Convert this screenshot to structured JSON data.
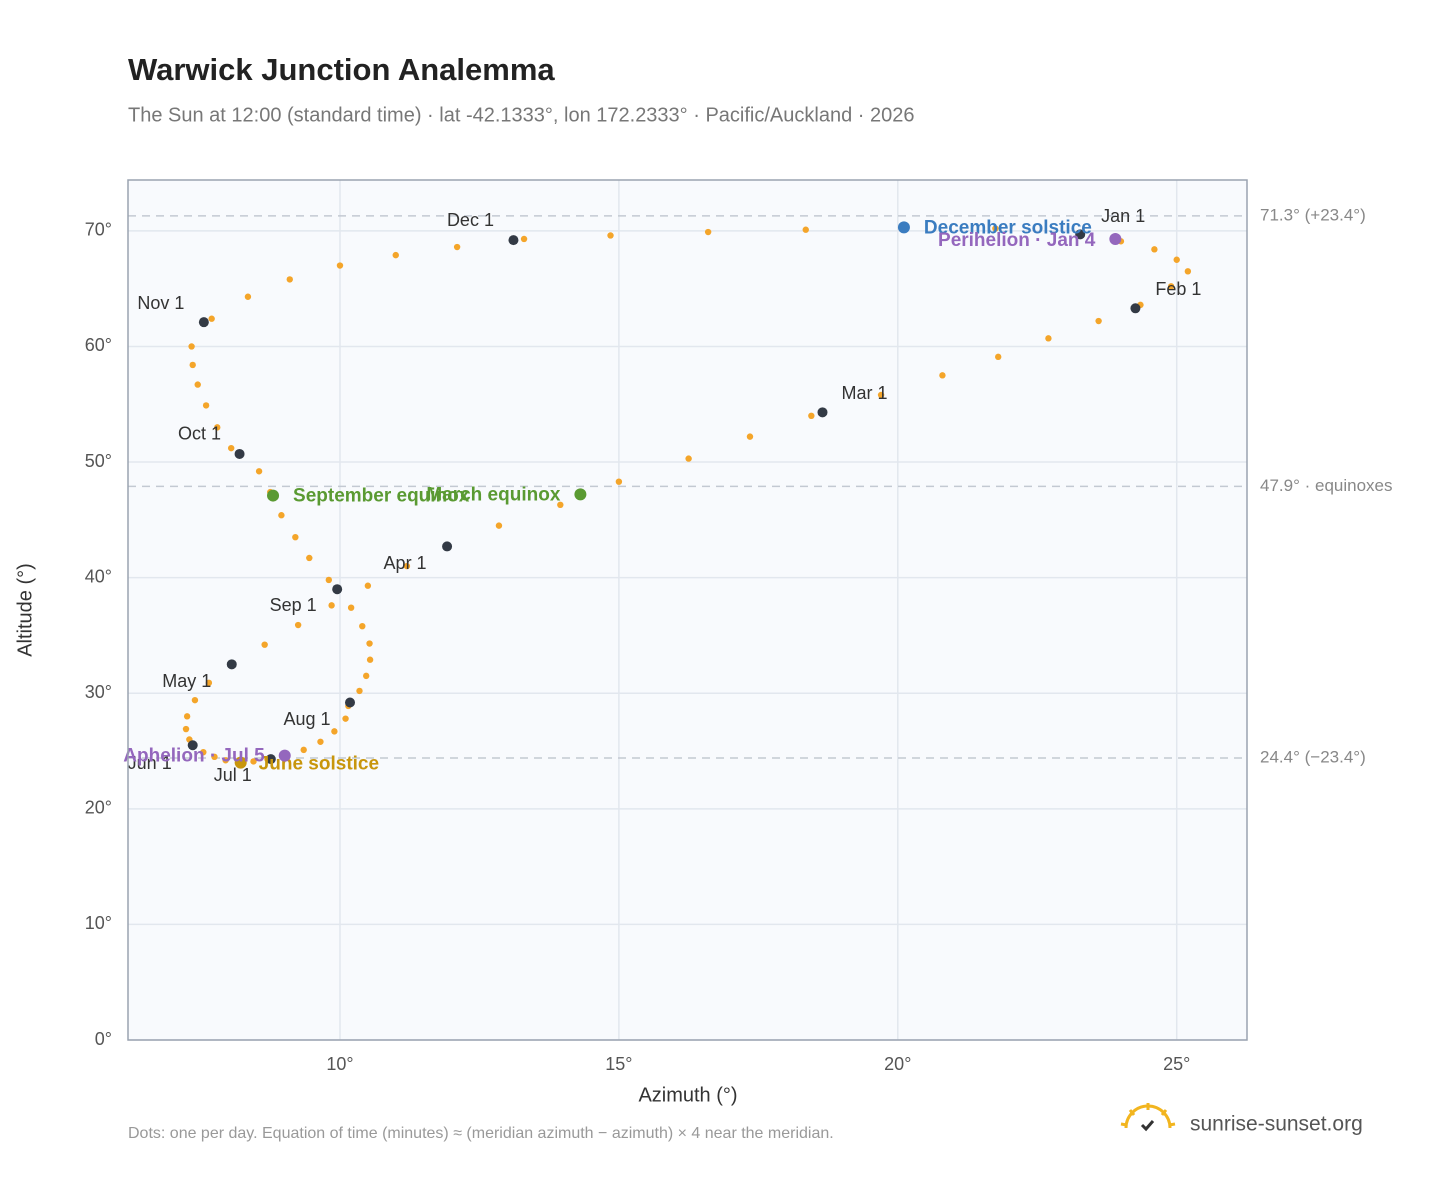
{
  "chart_data": {
    "type": "scatter",
    "title": "Warwick Junction Analemma",
    "subtitle": "The Sun at 12:00 (standard time) · lat -42.1333°, lon 172.2333° · Pacific/Auckland · 2026",
    "x_label": "Azimuth (°)",
    "y_label": "Altitude (°)",
    "xlim": [
      6.2,
      26.26
    ],
    "ylim": [
      0,
      74.4
    ],
    "xticks": [
      {
        "value": 10,
        "label": "10°"
      },
      {
        "value": 15,
        "label": "15°"
      },
      {
        "value": 20,
        "label": "20°"
      },
      {
        "value": 25,
        "label": "25°"
      }
    ],
    "yticks": [
      {
        "value": 0,
        "label": "0°"
      },
      {
        "value": 10,
        "label": "10°"
      },
      {
        "value": 20,
        "label": "20°"
      },
      {
        "value": 30,
        "label": "30°"
      },
      {
        "value": 40,
        "label": "40°"
      },
      {
        "value": 50,
        "label": "50°"
      },
      {
        "value": 60,
        "label": "60°"
      },
      {
        "value": 70,
        "label": "70°"
      }
    ],
    "grid": true,
    "path": {
      "color": "#f4a52a",
      "x": [
        23.27,
        24.0,
        24.6,
        25.0,
        25.2,
        24.9,
        24.35,
        23.6,
        22.7,
        21.8,
        20.8,
        19.7,
        18.45,
        17.35,
        16.25,
        15.0,
        13.95,
        12.85,
        11.92,
        11.2,
        10.5,
        9.85,
        9.25,
        8.65,
        8.06,
        7.65,
        7.4,
        7.26,
        7.24,
        7.3,
        7.35,
        7.55,
        7.75,
        7.95,
        8.2,
        8.45,
        8.7,
        9.0,
        9.35,
        9.65,
        9.9,
        10.1,
        10.15,
        10.35,
        10.47,
        10.54,
        10.53,
        10.4,
        10.2,
        9.8,
        9.45,
        9.2,
        8.95,
        8.75,
        8.55,
        8.05,
        7.8,
        7.6,
        7.45,
        7.36,
        7.34,
        7.7,
        8.35,
        9.1,
        10.0,
        11.0,
        12.1,
        13.3,
        14.85,
        16.6,
        18.35,
        20.1,
        21.75
      ],
      "y": [
        69.7,
        69.1,
        68.4,
        67.5,
        66.5,
        65.2,
        63.6,
        62.2,
        60.7,
        59.1,
        57.5,
        55.8,
        54.0,
        52.2,
        50.3,
        48.3,
        46.3,
        44.5,
        42.7,
        41.0,
        39.3,
        37.6,
        35.9,
        34.2,
        32.5,
        30.9,
        29.4,
        28.0,
        26.9,
        26.0,
        25.5,
        24.9,
        24.5,
        24.2,
        24.0,
        24.1,
        24.3,
        24.6,
        25.1,
        25.8,
        26.7,
        27.8,
        28.9,
        30.2,
        31.5,
        32.9,
        34.3,
        35.8,
        37.4,
        39.8,
        41.7,
        43.5,
        45.4,
        47.4,
        49.2,
        51.2,
        53.0,
        54.9,
        56.7,
        58.4,
        60.0,
        62.4,
        64.3,
        65.8,
        67.0,
        67.9,
        68.6,
        69.3,
        69.6,
        69.9,
        70.1,
        70.3,
        70.2
      ]
    },
    "month_markers": {
      "color": "#333a45",
      "labels": [
        "Jan 1",
        "Feb 1",
        "Mar 1",
        "Apr 1",
        "May 1",
        "Jun 1",
        "Jul 1",
        "Aug 1",
        "Sep 1",
        "Oct 1",
        "Nov 1",
        "Dec 1"
      ],
      "x": [
        23.27,
        24.26,
        18.65,
        11.92,
        8.06,
        7.36,
        8.76,
        10.18,
        9.95,
        8.2,
        7.56,
        13.11
      ],
      "y": [
        69.7,
        63.3,
        54.3,
        42.7,
        32.5,
        25.5,
        24.3,
        29.2,
        39.0,
        50.7,
        62.1,
        69.2
      ]
    },
    "events": [
      {
        "label": "December solstice",
        "x": 20.11,
        "y": 70.3,
        "color": "#3a7cc0"
      },
      {
        "label": "Perihelion · Jan 4",
        "x": 23.9,
        "y": 69.3,
        "color": "#9467bd"
      },
      {
        "label": "March equinox",
        "x": 14.31,
        "y": 47.2,
        "color": "#5a9a32"
      },
      {
        "label": "September equinox",
        "x": 8.8,
        "y": 47.1,
        "color": "#5a9a32"
      },
      {
        "label": "June solstice",
        "x": 8.22,
        "y": 24.0,
        "color": "#c8960c"
      },
      {
        "label": "Aphelion · Jul 5",
        "x": 9.01,
        "y": 24.6,
        "color": "#9467bd"
      }
    ],
    "reference_lines": [
      {
        "value": 71.3,
        "label": "71.3° (+23.4°)"
      },
      {
        "value": 47.9,
        "label": "47.9° · equinoxes"
      },
      {
        "value": 24.4,
        "label": "24.4° (−23.4°)"
      }
    ],
    "note": "Dots: one per day. Equation of time (minutes) ≈ (meridian azimuth − azimuth) × 4 near the meridian.",
    "brand": "sunrise-sunset.org"
  }
}
